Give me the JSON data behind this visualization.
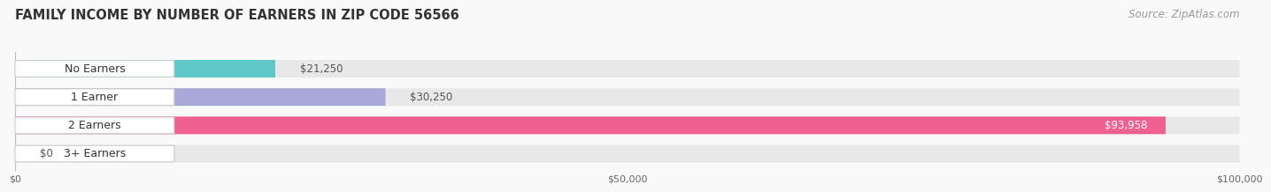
{
  "title": "FAMILY INCOME BY NUMBER OF EARNERS IN ZIP CODE 56566",
  "source": "Source: ZipAtlas.com",
  "categories": [
    "No Earners",
    "1 Earner",
    "2 Earners",
    "3+ Earners"
  ],
  "values": [
    21250,
    30250,
    93958,
    0
  ],
  "value_labels": [
    "$21,250",
    "$30,250",
    "$93,958",
    "$0"
  ],
  "bar_colors": [
    "#5ec8c8",
    "#a9a9d9",
    "#f06090",
    "#f5c888"
  ],
  "bar_bg_color": "#e8e8e8",
  "bar_height": 0.62,
  "xlim": [
    0,
    100000
  ],
  "xticks": [
    0,
    50000,
    100000
  ],
  "xtick_labels": [
    "$0",
    "$50,000",
    "$100,000"
  ],
  "title_fontsize": 10.5,
  "source_fontsize": 8.5,
  "label_fontsize": 9,
  "value_fontsize": 8.5,
  "background_color": "#f9f9f9",
  "label_box_color": "#ffffff",
  "label_box_edge_color": "#cccccc"
}
